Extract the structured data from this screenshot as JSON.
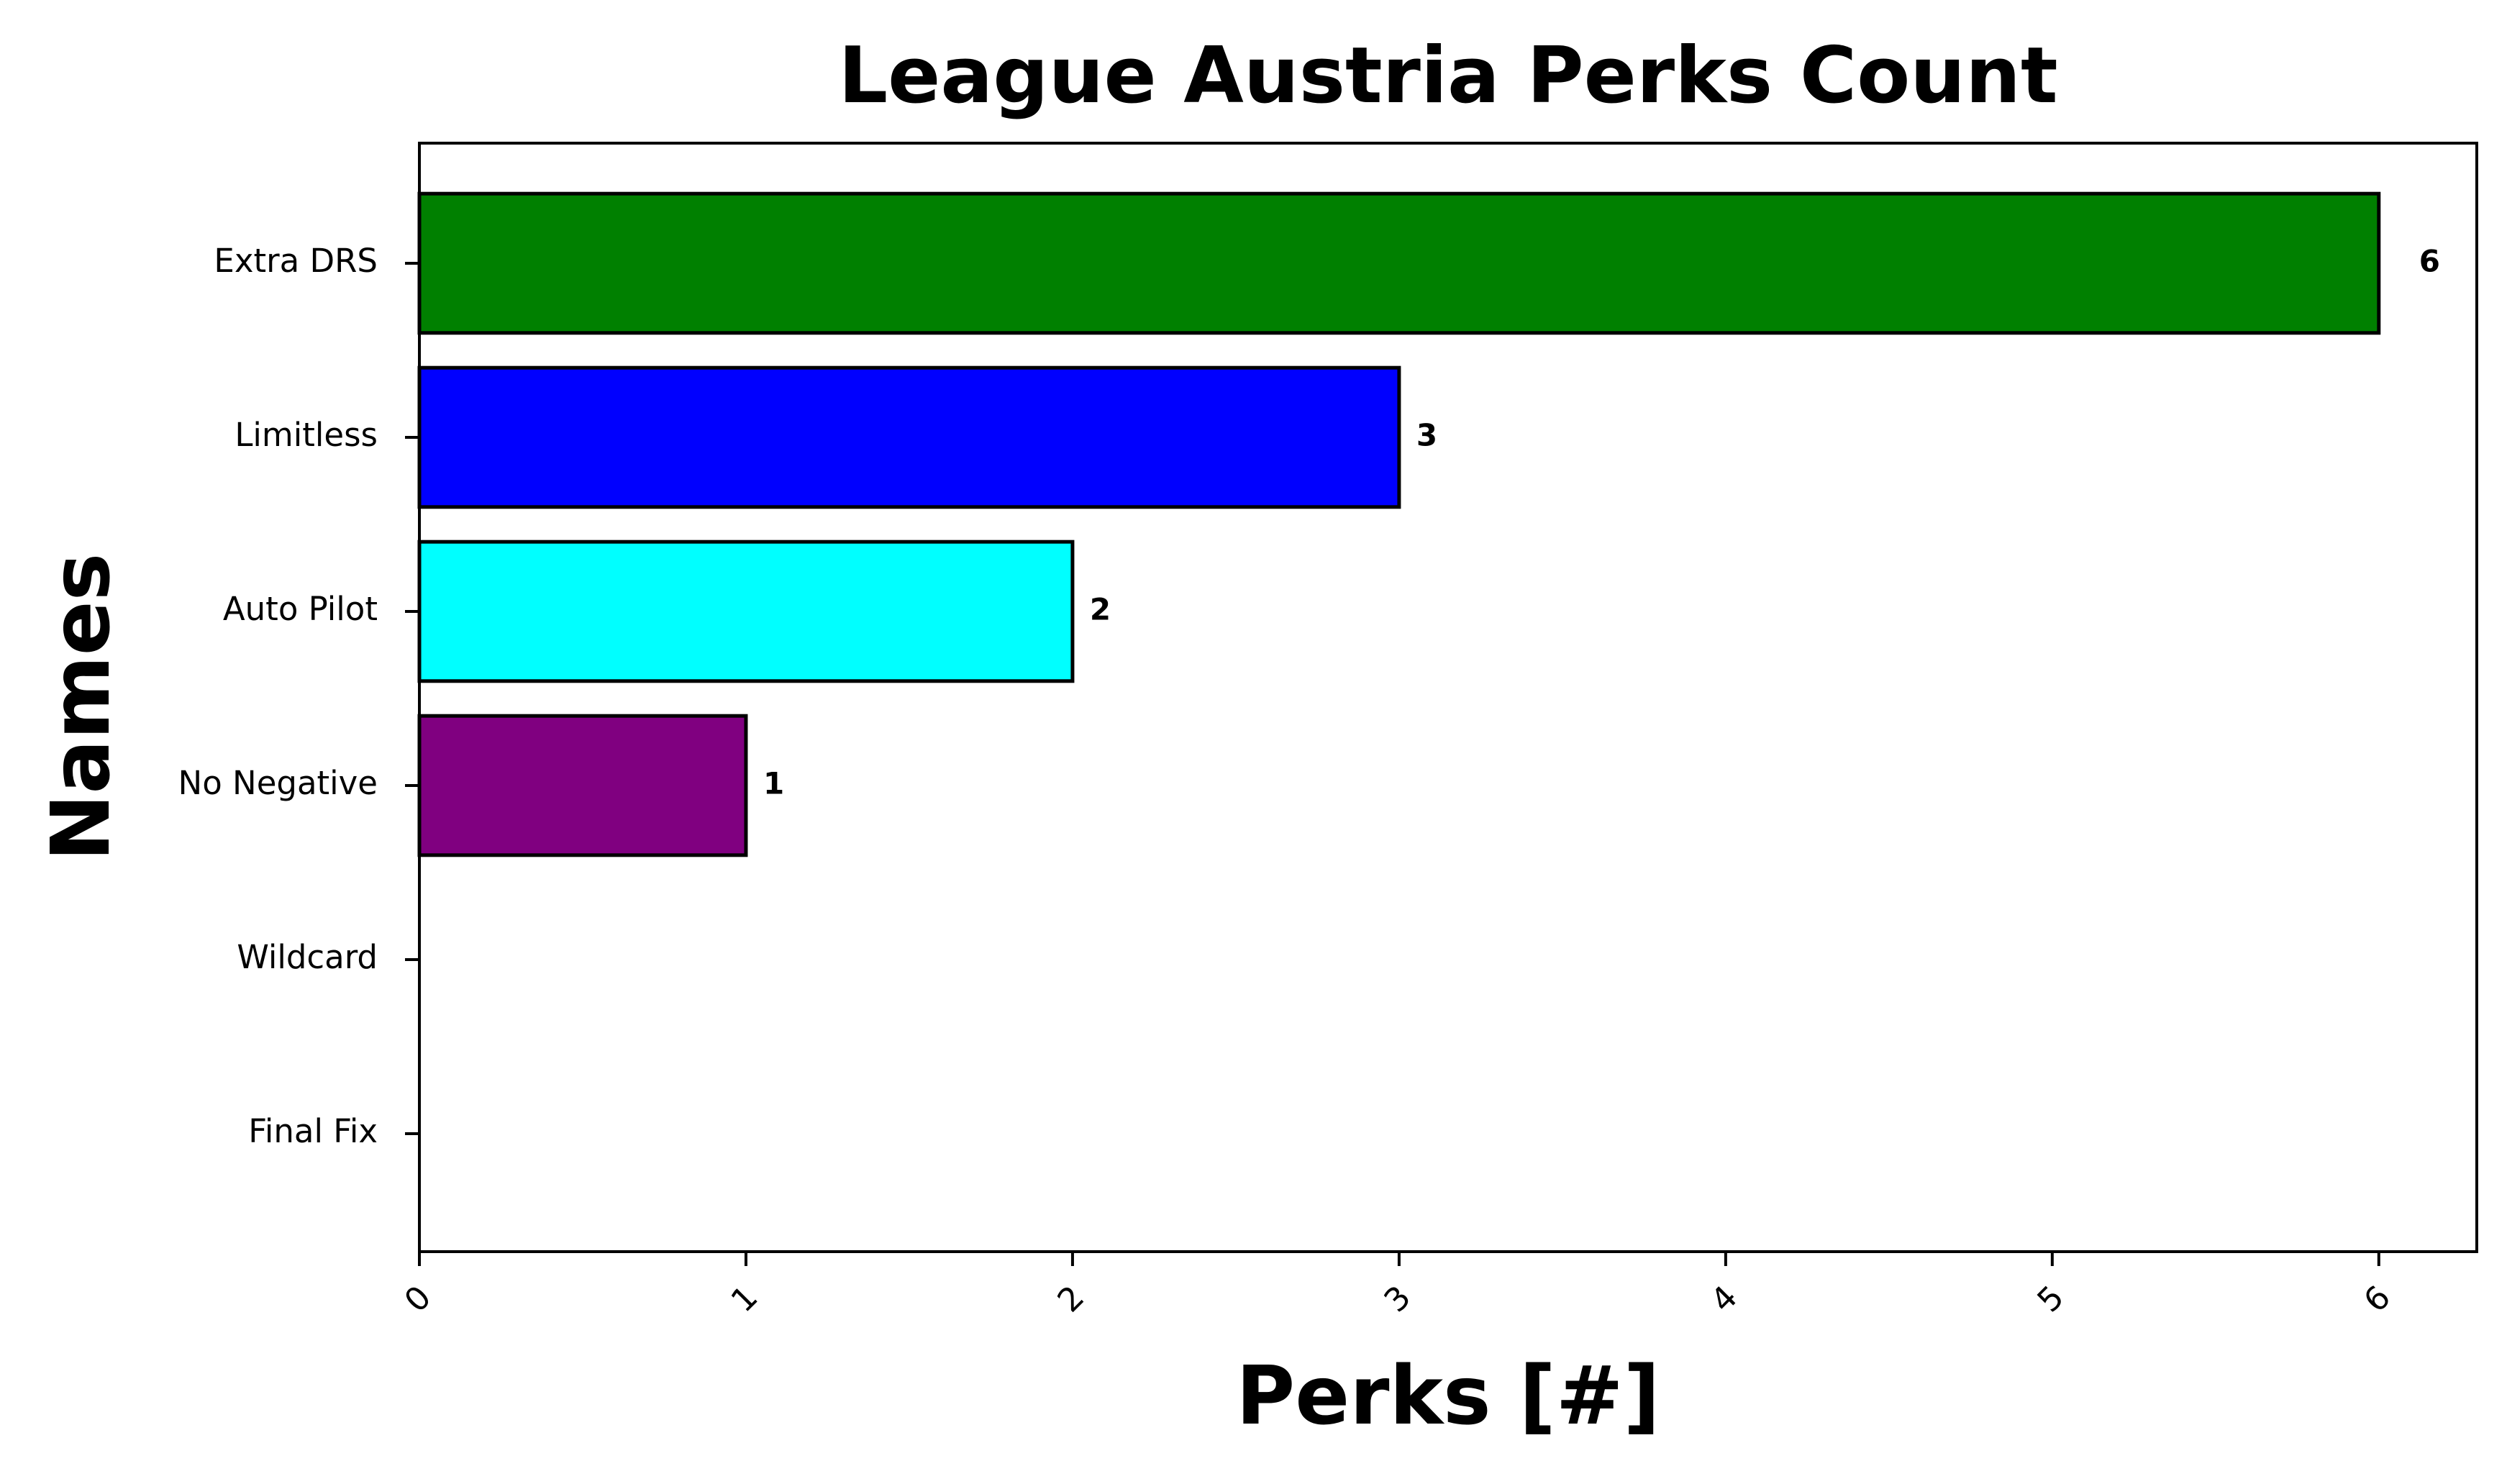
{
  "chart_data": {
    "type": "barh",
    "title": "League Austria Perks Count",
    "xlabel": "Perks [#]",
    "ylabel": "Names",
    "categories": [
      "Extra DRS",
      "Limitless",
      "Auto Pilot",
      "No Negative",
      "Wildcard",
      "Final Fix"
    ],
    "values": [
      6,
      3,
      2,
      1,
      0,
      0
    ],
    "value_labels": [
      "6",
      "3",
      "2",
      "1",
      null,
      null
    ],
    "colors": [
      "#008000",
      "#0000ff",
      "#00ffff",
      "#800080"
    ],
    "xlim": [
      0,
      6.3
    ],
    "xticks": [
      0,
      1,
      2,
      3,
      4,
      5,
      6
    ],
    "grid": false
  }
}
